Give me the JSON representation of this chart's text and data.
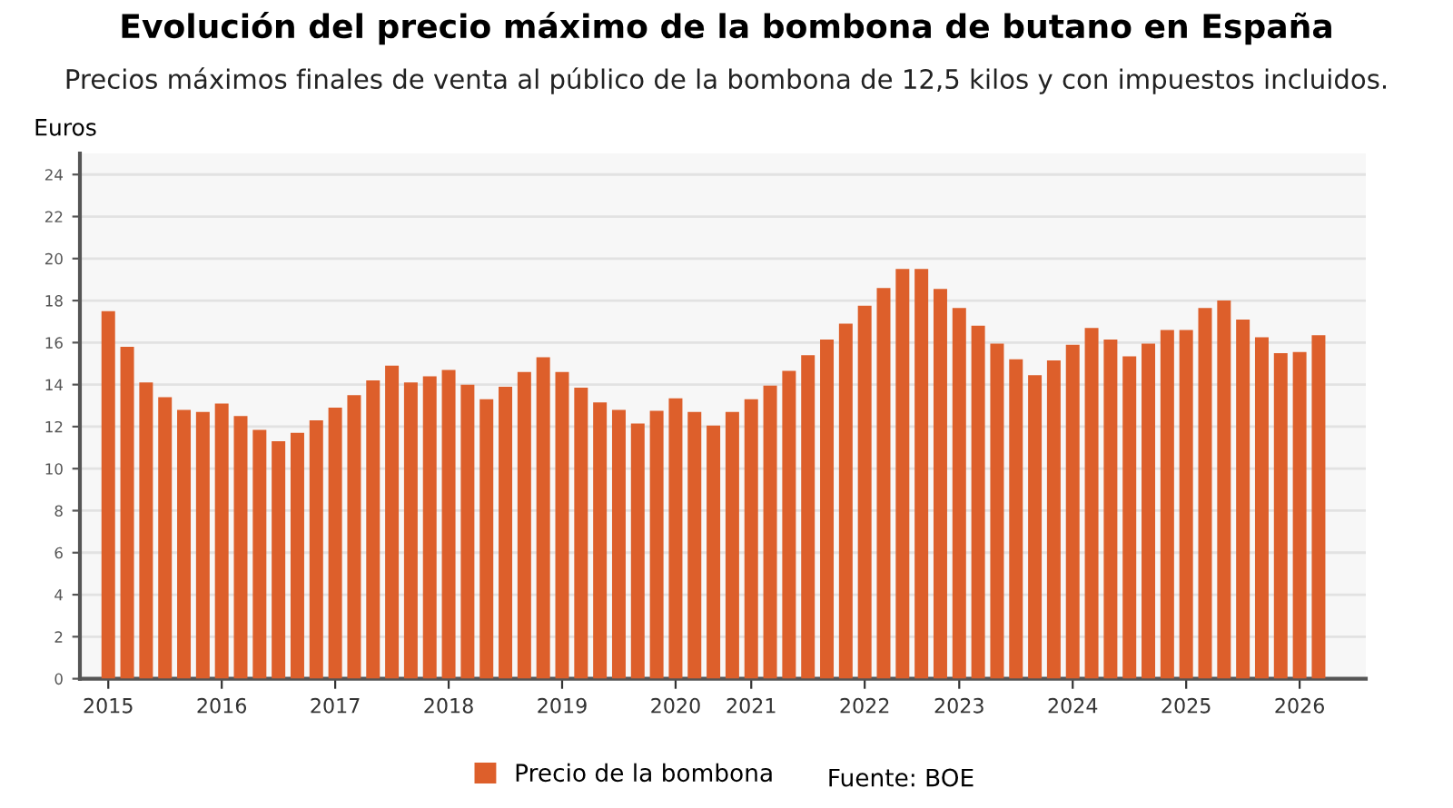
{
  "chart_data": {
    "type": "bar",
    "title": "Evolución del precio máximo de la bombona de butano en España",
    "subtitle": "Precios máximos finales de venta al público de la bombona de 12,5 kilos y con impuestos incluidos.",
    "ylabel": "Euros",
    "annotations": [
      "Fuente: BOE"
    ],
    "categories": [
      "2015",
      null,
      null,
      null,
      null,
      null,
      "2016",
      null,
      null,
      null,
      null,
      null,
      "2017",
      null,
      null,
      null,
      null,
      null,
      "2018",
      null,
      null,
      null,
      null,
      null,
      "2019",
      null,
      null,
      null,
      null,
      null,
      "2020",
      null,
      null,
      null,
      "2021",
      null,
      null,
      null,
      null,
      null,
      "2022",
      null,
      null,
      null,
      null,
      "2023",
      null,
      null,
      null,
      null,
      null,
      "2024",
      null,
      null,
      null,
      null,
      null,
      "2025",
      null,
      null,
      null,
      null,
      null,
      "2026",
      null
    ],
    "series": [
      {
        "name": "Precio de la bombona",
        "color": "#dd5f2b",
        "values": [
          17.5,
          15.8,
          14.1,
          13.4,
          12.8,
          12.7,
          13.1,
          12.5,
          11.85,
          11.3,
          11.7,
          12.3,
          12.9,
          13.5,
          14.2,
          14.9,
          14.1,
          14.4,
          14.7,
          14.0,
          13.3,
          13.9,
          14.6,
          15.3,
          14.6,
          13.85,
          13.15,
          12.8,
          12.15,
          12.75,
          13.35,
          12.7,
          12.05,
          12.7,
          13.3,
          13.95,
          14.65,
          15.4,
          16.15,
          16.9,
          17.75,
          18.6,
          19.5,
          19.5,
          18.55,
          17.65,
          16.8,
          15.95,
          15.2,
          14.45,
          15.15,
          15.9,
          16.7,
          16.15,
          15.35,
          15.95,
          16.6,
          16.6,
          17.65,
          18.0,
          17.1,
          16.25,
          15.5,
          15.55,
          16.35
        ]
      }
    ],
    "ylim": [
      0,
      25
    ],
    "yticks": [
      0,
      2,
      4,
      6,
      8,
      10,
      12,
      14,
      16,
      18,
      20,
      22,
      24
    ],
    "grid": "y",
    "legend": "bottom"
  }
}
